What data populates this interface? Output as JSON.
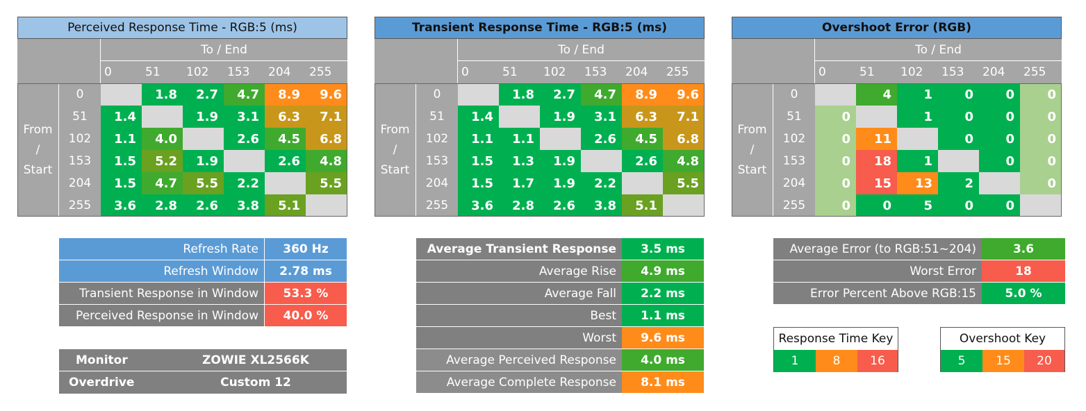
{
  "panels": [
    {
      "title": "Perceived Response Time - RGB:5 (ms)",
      "to_end": "To / End",
      "from_start": [
        "From",
        "/",
        "Start"
      ],
      "cols": [
        "0",
        "51",
        "102",
        "153",
        "204",
        "255"
      ],
      "rows": [
        "0",
        "51",
        "102",
        "153",
        "204",
        "255"
      ],
      "cells": [
        [
          "",
          "1.8",
          "2.7",
          "4.7",
          "8.9",
          "9.6"
        ],
        [
          "1.4",
          "",
          "1.9",
          "3.1",
          "6.3",
          "7.1"
        ],
        [
          "1.1",
          "4.0",
          "",
          "2.6",
          "4.5",
          "6.8"
        ],
        [
          "1.5",
          "5.2",
          "1.9",
          "",
          "2.6",
          "4.8"
        ],
        [
          "1.5",
          "4.7",
          "5.5",
          "2.2",
          "",
          "5.5"
        ],
        [
          "3.6",
          "2.8",
          "2.6",
          "3.8",
          "5.1",
          ""
        ]
      ],
      "colors": [
        [
          "#d9d9d9",
          "#00b050",
          "#00b050",
          "#3faa2e",
          "#ff8c1a",
          "#ff8c1a"
        ],
        [
          "#00b050",
          "#d9d9d9",
          "#00b050",
          "#00b050",
          "#c8961a",
          "#c8961a"
        ],
        [
          "#00b050",
          "#3faa2e",
          "#d9d9d9",
          "#00b050",
          "#3faa2e",
          "#c8961a"
        ],
        [
          "#00b050",
          "#6aa121",
          "#00b050",
          "#d9d9d9",
          "#00b050",
          "#3faa2e"
        ],
        [
          "#00b050",
          "#3faa2e",
          "#6aa121",
          "#00b050",
          "#d9d9d9",
          "#6aa121"
        ],
        [
          "#00b050",
          "#00b050",
          "#00b050",
          "#00b050",
          "#6aa121",
          "#d9d9d9"
        ]
      ]
    },
    {
      "title": "Transient Response Time - RGB:5 (ms)",
      "to_end": "To / End",
      "from_start": [
        "From",
        "/",
        "Start"
      ],
      "cols": [
        "0",
        "51",
        "102",
        "153",
        "204",
        "255"
      ],
      "rows": [
        "0",
        "51",
        "102",
        "153",
        "204",
        "255"
      ],
      "cells": [
        [
          "",
          "1.8",
          "2.7",
          "4.7",
          "8.9",
          "9.6"
        ],
        [
          "1.4",
          "",
          "1.9",
          "3.1",
          "6.3",
          "7.1"
        ],
        [
          "1.1",
          "1.1",
          "",
          "2.6",
          "4.5",
          "6.8"
        ],
        [
          "1.5",
          "1.3",
          "1.9",
          "",
          "2.6",
          "4.8"
        ],
        [
          "1.5",
          "1.7",
          "1.9",
          "2.2",
          "",
          "5.5"
        ],
        [
          "3.6",
          "2.8",
          "2.6",
          "3.8",
          "5.1",
          ""
        ]
      ],
      "colors": [
        [
          "#d9d9d9",
          "#00b050",
          "#00b050",
          "#3faa2e",
          "#ff8c1a",
          "#ff8c1a"
        ],
        [
          "#00b050",
          "#d9d9d9",
          "#00b050",
          "#00b050",
          "#c8961a",
          "#c8961a"
        ],
        [
          "#00b050",
          "#00b050",
          "#d9d9d9",
          "#00b050",
          "#3faa2e",
          "#c8961a"
        ],
        [
          "#00b050",
          "#00b050",
          "#00b050",
          "#d9d9d9",
          "#00b050",
          "#3faa2e"
        ],
        [
          "#00b050",
          "#00b050",
          "#00b050",
          "#00b050",
          "#d9d9d9",
          "#6aa121"
        ],
        [
          "#00b050",
          "#00b050",
          "#00b050",
          "#00b050",
          "#6aa121",
          "#d9d9d9"
        ]
      ]
    },
    {
      "title": "Overshoot Error (RGB)",
      "to_end": "To / End",
      "from_start": [
        "From",
        "/",
        "Start"
      ],
      "cols": [
        "0",
        "51",
        "102",
        "153",
        "204",
        "255"
      ],
      "rows": [
        "0",
        "51",
        "102",
        "153",
        "204",
        "255"
      ],
      "cells": [
        [
          "",
          "4",
          "1",
          "0",
          "0",
          "0"
        ],
        [
          "0",
          "",
          "1",
          "0",
          "0",
          "0"
        ],
        [
          "0",
          "11",
          "",
          "0",
          "0",
          "0"
        ],
        [
          "0",
          "18",
          "1",
          "",
          "0",
          "0"
        ],
        [
          "0",
          "15",
          "13",
          "2",
          "",
          "0"
        ],
        [
          "0",
          "0",
          "5",
          "0",
          "0",
          ""
        ]
      ],
      "colors": [
        [
          "#d9d9d9",
          "#3faa2e",
          "#00b050",
          "#00b050",
          "#00b050",
          "#a9d08e"
        ],
        [
          "#a9d08e",
          "#d9d9d9",
          "#00b050",
          "#00b050",
          "#00b050",
          "#a9d08e"
        ],
        [
          "#a9d08e",
          "#ff8c1a",
          "#d9d9d9",
          "#00b050",
          "#00b050",
          "#a9d08e"
        ],
        [
          "#a9d08e",
          "#f75c4c",
          "#00b050",
          "#d9d9d9",
          "#00b050",
          "#a9d08e"
        ],
        [
          "#a9d08e",
          "#f75c4c",
          "#ff8c1a",
          "#00b050",
          "#d9d9d9",
          "#a9d08e"
        ],
        [
          "#a9d08e",
          "#00b050",
          "#00b050",
          "#00b050",
          "#00b050",
          "#d9d9d9"
        ]
      ]
    }
  ],
  "refresh": [
    {
      "label": "Refresh Rate",
      "value": "360 Hz",
      "label_bg": "#5b9bd5",
      "value_bg": "#5b9bd5"
    },
    {
      "label": "Refresh Window",
      "value": "2.78 ms",
      "label_bg": "#5b9bd5",
      "value_bg": "#5b9bd5"
    },
    {
      "label": "Transient Response in Window",
      "value": "53.3 %",
      "label_bg": "#7f7f7f",
      "value_bg": "#f75c4c"
    },
    {
      "label": "Perceived Response in Window",
      "value": "40.0 %",
      "label_bg": "#7f7f7f",
      "value_bg": "#f75c4c"
    }
  ],
  "monitor": {
    "monitor_label": "Monitor",
    "monitor_value": "ZOWIE XL2566K",
    "overdrive_label": "Overdrive",
    "overdrive_value": "Custom 12"
  },
  "averages": [
    {
      "label": "Average Transient Response",
      "value": "3.5 ms",
      "bold": true,
      "value_bg": "#00b050"
    },
    {
      "label": "Average Rise",
      "value": "4.9 ms",
      "bold": false,
      "value_bg": "#3faa2e"
    },
    {
      "label": "Average Fall",
      "value": "2.2 ms",
      "bold": false,
      "value_bg": "#00b050"
    },
    {
      "label": "Best",
      "value": "1.1 ms",
      "bold": false,
      "value_bg": "#00b050"
    },
    {
      "label": "Worst",
      "value": "9.6 ms",
      "bold": false,
      "value_bg": "#ff8c1a"
    },
    {
      "label": "Average Perceived Response",
      "value": "4.0 ms",
      "bold": false,
      "value_bg": "#3faa2e"
    },
    {
      "label": "Average Complete Response",
      "value": "8.1 ms",
      "bold": false,
      "value_bg": "#ff8c1a"
    }
  ],
  "overshoot_stats": [
    {
      "label": "Average Error (to RGB:51~204)",
      "value": "3.6",
      "value_bg": "#3faa2e"
    },
    {
      "label": "Worst Error",
      "value": "18",
      "value_bg": "#f75c4c"
    },
    {
      "label": "Error Percent Above RGB:15",
      "value": "5.0 %",
      "value_bg": "#00b050"
    }
  ],
  "response_key": {
    "title": "Response Time Key",
    "items": [
      {
        "value": "1",
        "color": "#00b050"
      },
      {
        "value": "8",
        "color": "#ff8c1a"
      },
      {
        "value": "16",
        "color": "#f75c4c"
      }
    ]
  },
  "overshoot_key": {
    "title": "Overshoot Key",
    "items": [
      {
        "value": "5",
        "color": "#00b050"
      },
      {
        "value": "15",
        "color": "#ff8c1a"
      },
      {
        "value": "20",
        "color": "#f75c4c"
      }
    ]
  }
}
